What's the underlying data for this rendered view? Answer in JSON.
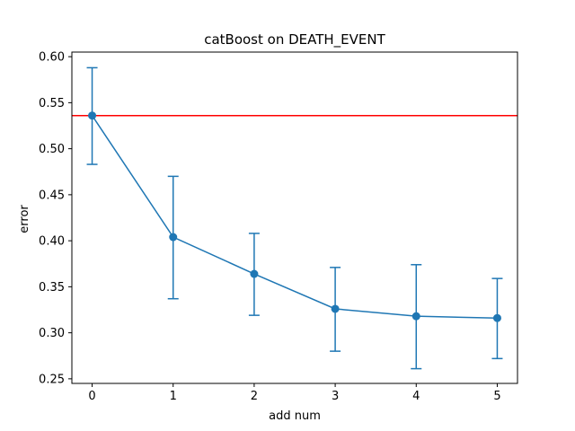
{
  "chart_data": {
    "type": "line",
    "title": "catBoost on DEATH_EVENT",
    "xlabel": "add num",
    "ylabel": "error",
    "xlim": [
      -0.25,
      5.25
    ],
    "ylim": [
      0.245,
      0.605
    ],
    "x_ticks": [
      0,
      1,
      2,
      3,
      4,
      5
    ],
    "y_ticks": [
      0.25,
      0.3,
      0.35,
      0.4,
      0.45,
      0.5,
      0.55,
      0.6
    ],
    "y_tick_labels": [
      "0.25",
      "0.30",
      "0.35",
      "0.40",
      "0.45",
      "0.50",
      "0.55",
      "0.60"
    ],
    "grid": false,
    "series": [
      {
        "x": [
          0,
          1,
          2,
          3,
          4,
          5
        ],
        "y": [
          0.536,
          0.404,
          0.364,
          0.326,
          0.318,
          0.316
        ],
        "y_err_low": [
          0.483,
          0.337,
          0.319,
          0.28,
          0.261,
          0.272
        ],
        "y_err_high": [
          0.588,
          0.47,
          0.408,
          0.371,
          0.374,
          0.359
        ],
        "color": "#1f77b4",
        "marker": "circle"
      }
    ],
    "hlines": [
      {
        "y": 0.536,
        "color": "#ff0000"
      }
    ]
  }
}
